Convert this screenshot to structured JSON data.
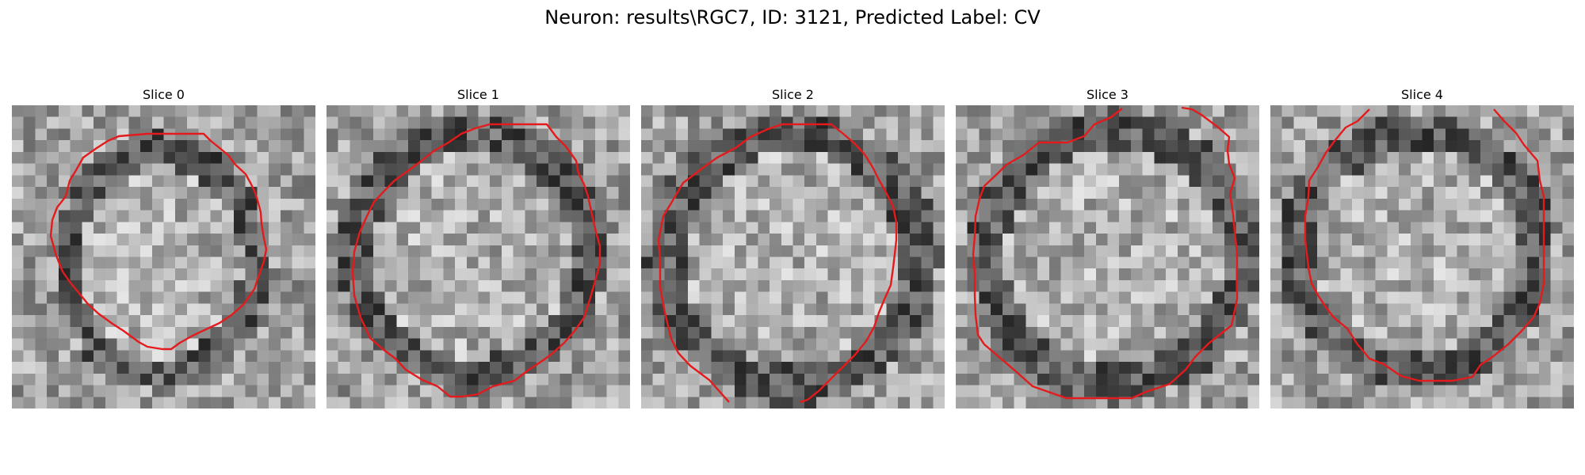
{
  "figure": {
    "suptitle": "Neuron: results\\RGC7, ID: 3121, Predicted Label: CV",
    "panels": [
      {
        "title": "Slice 0"
      },
      {
        "title": "Slice 1"
      },
      {
        "title": "Slice 2"
      },
      {
        "title": "Slice 3"
      },
      {
        "title": "Slice 4"
      }
    ],
    "contour_color": "#e41a1c",
    "colormap": "grayscale"
  }
}
